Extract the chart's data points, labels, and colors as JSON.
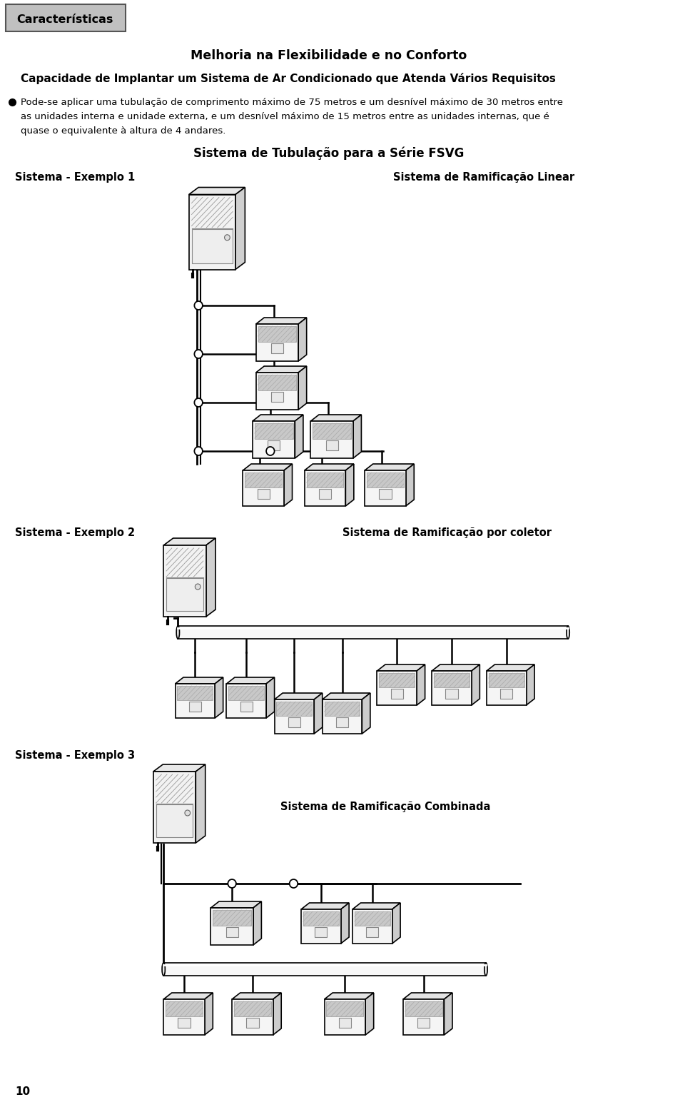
{
  "bg_color": "#ffffff",
  "title1": "Melhoria na Flexibilidade e no Conforto",
  "title2": "Capacidade de Implantar um Sistema de Ar Condicionado que Atenda Vários Requisitos",
  "bullet_text_line1": "Pode-se aplicar uma tubulação de comprimento máximo de 75 metros e um desnível máximo de 30 metros entre",
  "bullet_text_line2": "as unidades interna e unidade externa, e um desnível máximo de 15 metros entre as unidades internas, que é",
  "bullet_text_line3": "quase o equivalente à altura de 4 andares.",
  "section_title": "Sistema de Tubulação para a Série FSVG",
  "label_ex1": "Sistema - Exemplo 1",
  "label_ex1_right": "Sistema de Ramificação Linear",
  "label_ex2": "Sistema - Exemplo 2",
  "label_ex2_right": "Sistema de Ramificação por coletor",
  "label_ex3": "Sistema - Exemplo 3",
  "label_ex3_right": "Sistema de Ramificação Combinada",
  "header_label": "Características",
  "page_number": "10",
  "header_bg": "#c0c0c0",
  "line_color": "#000000",
  "text_color": "#000000"
}
